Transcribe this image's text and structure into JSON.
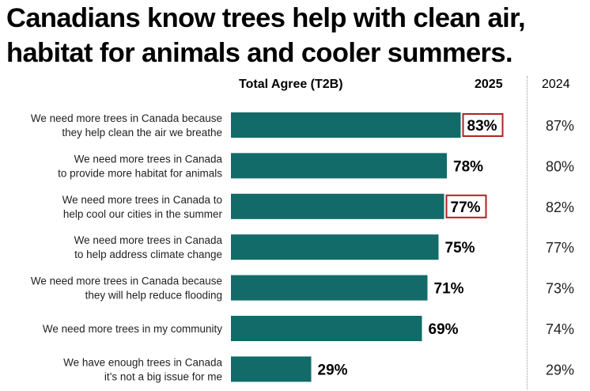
{
  "title_line1": "Canadians know trees help with clean air,",
  "title_line2": "habitat for animals and cooler summers.",
  "colors": {
    "bar": "#126b68",
    "highlight_box": "#b22222",
    "divider": "#9a9a9a"
  },
  "chart_data": {
    "type": "bar",
    "orientation": "horizontal",
    "series_label": "Total Agree (T2B)",
    "current_year_label": "2025",
    "previous_year_label": "2024",
    "xlim": [
      0,
      100
    ],
    "value_suffix": "%",
    "categories": [
      [
        "We need more trees in Canada because",
        "they help clean the air we breathe"
      ],
      [
        "We need more trees in Canada",
        "to provide more habitat for animals"
      ],
      [
        "We need more trees in Canada to",
        "help cool our cities in the summer"
      ],
      [
        "We need more trees in Canada",
        "to help address climate change"
      ],
      [
        "We need more trees in Canada because",
        "they will help reduce flooding"
      ],
      [
        "We need more trees in my community"
      ],
      [
        "We have enough trees in Canada",
        "it’s not a big issue for me"
      ]
    ],
    "values_2025": [
      83,
      78,
      77,
      75,
      71,
      69,
      29
    ],
    "values_2024": [
      87,
      80,
      82,
      77,
      73,
      74,
      29
    ],
    "highlighted": [
      true,
      false,
      true,
      false,
      false,
      false,
      false
    ]
  }
}
